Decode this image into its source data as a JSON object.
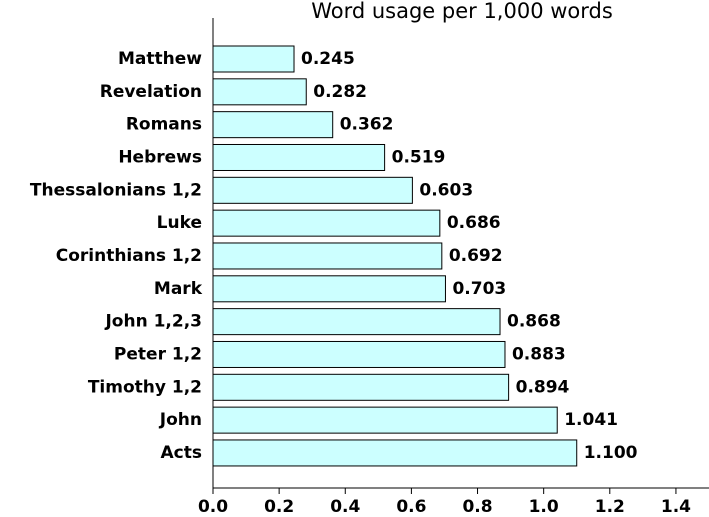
{
  "chart_data": {
    "type": "barh",
    "title": "Word usage per 1,000 words",
    "categories": [
      "Matthew",
      "Revelation",
      "Romans",
      "Hebrews",
      "Thessalonians 1,2",
      "Luke",
      "Corinthians 1,2",
      "Mark",
      "John 1,2,3",
      "Peter 1,2",
      "Timothy 1,2",
      "John",
      "Acts"
    ],
    "values": [
      0.245,
      0.282,
      0.362,
      0.519,
      0.603,
      0.686,
      0.692,
      0.703,
      0.868,
      0.883,
      0.894,
      1.041,
      1.1
    ],
    "value_labels": [
      "0.245",
      "0.282",
      "0.362",
      "0.519",
      "0.603",
      "0.686",
      "0.692",
      "0.703",
      "0.868",
      "0.883",
      "0.894",
      "1.041",
      "1.100"
    ],
    "color": "#ccffff",
    "xlim": [
      0,
      1.5
    ],
    "xticks": [
      {
        "value": 0,
        "label": "0.0"
      },
      {
        "value": 0.2,
        "label": "0.2"
      },
      {
        "value": 0.4,
        "label": "0.4"
      },
      {
        "value": 0.6,
        "label": "0.6"
      },
      {
        "value": 0.8,
        "label": "0.8"
      },
      {
        "value": 1,
        "label": "1.0"
      },
      {
        "value": 1.2,
        "label": "1.2"
      },
      {
        "value": 1.4,
        "label": "1.4"
      }
    ]
  }
}
